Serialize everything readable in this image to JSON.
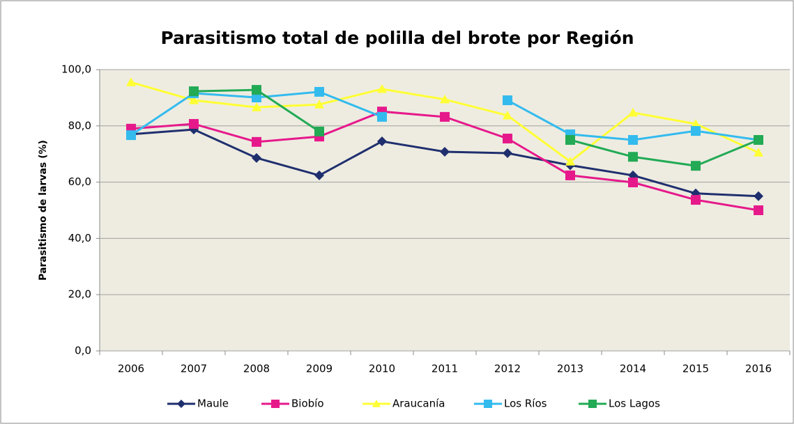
{
  "chart_data": {
    "type": "line",
    "title": "Parasitismo total de polilla del brote por Región",
    "y_label": "Parasitismo de larvas (%)",
    "categories": [
      "2006",
      "2007",
      "2008",
      "2009",
      "2010",
      "2011",
      "2012",
      "2013",
      "2014",
      "2015",
      "2016"
    ],
    "series": [
      {
        "name": "Maule",
        "color": "#1f2f6e",
        "marker": "diamond",
        "values": [
          77,
          78.7,
          68.6,
          62.4,
          74.5,
          70.8,
          70.3,
          66,
          62.4,
          56,
          55
        ]
      },
      {
        "name": "Biobío",
        "color": "#e6198b",
        "marker": "square",
        "values": [
          79,
          80.7,
          74.3,
          76.2,
          85.1,
          83.2,
          75.5,
          62.4,
          59.9,
          53.7,
          50
        ]
      },
      {
        "name": "Araucanía",
        "color": "#ffff33",
        "marker": "triangle",
        "values": [
          95.5,
          89.1,
          86.6,
          87.6,
          93.1,
          89.4,
          83.7,
          67.3,
          84.7,
          80.7,
          70.5
        ]
      },
      {
        "name": "Los Ríos",
        "color": "#33bbee",
        "marker": "square",
        "values": [
          76.7,
          91.6,
          90.1,
          92.1,
          83.2,
          null,
          89.1,
          77,
          75,
          78.2,
          75
        ]
      },
      {
        "name": "Los Lagos",
        "color": "#22aa55",
        "marker": "square",
        "values": [
          null,
          92.3,
          92.8,
          78,
          null,
          null,
          null,
          75,
          69,
          65.8,
          75
        ]
      }
    ],
    "ylim": [
      0,
      100
    ],
    "yticks": [
      {
        "value": 0,
        "label": "0,0"
      },
      {
        "value": 20,
        "label": "20,0"
      },
      {
        "value": 40,
        "label": "40,0"
      },
      {
        "value": 60,
        "label": "60,0"
      },
      {
        "value": 80,
        "label": "80,0"
      },
      {
        "value": 100,
        "label": "100,0"
      }
    ],
    "grid": true,
    "legend": "bottom"
  }
}
